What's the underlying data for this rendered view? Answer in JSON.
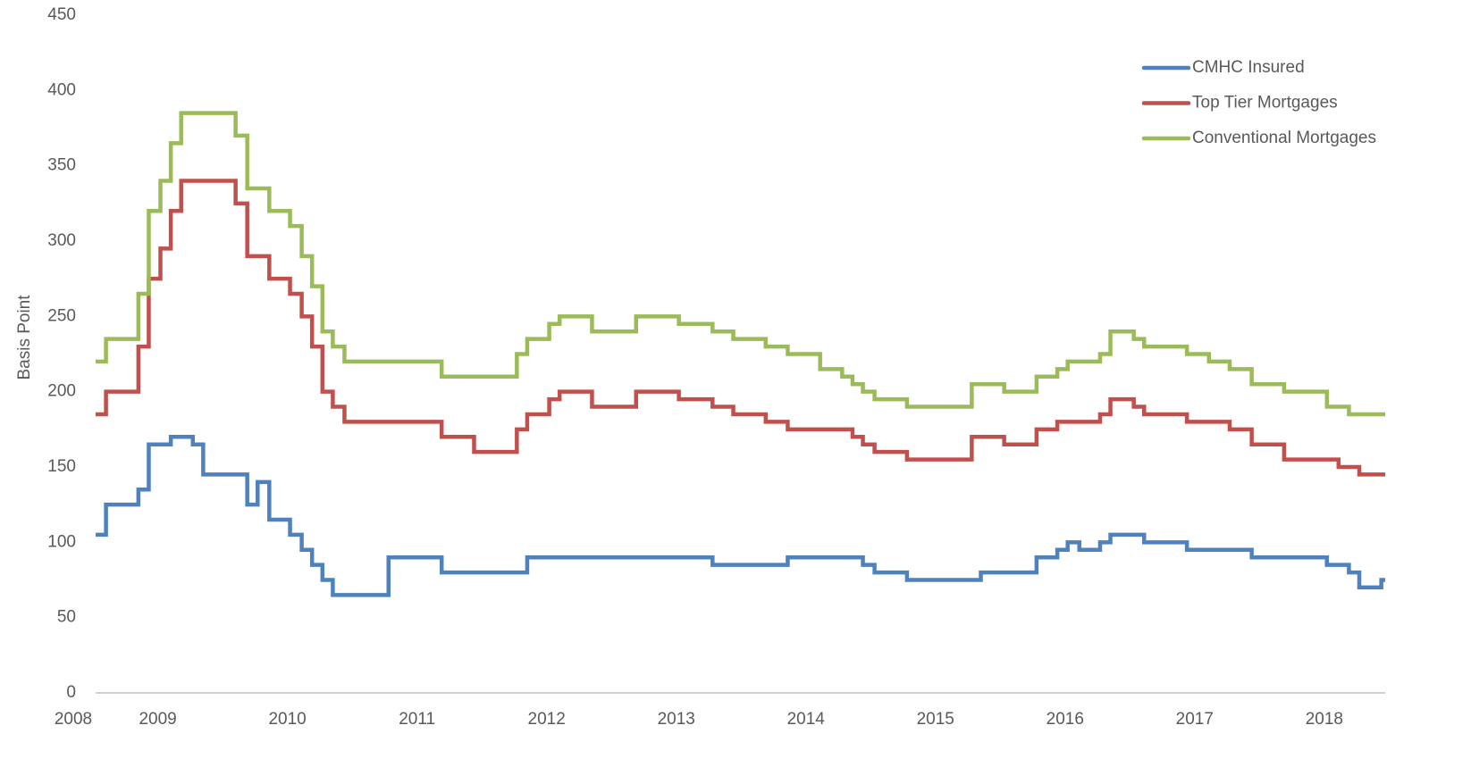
{
  "chart_data": {
    "type": "step-line",
    "y_label": "Basis Point",
    "xlim": [
      2008.52,
      2018.47
    ],
    "xticks": [
      2008,
      2009,
      2010,
      2011,
      2012,
      2013,
      2014,
      2015,
      2016,
      2017,
      2018
    ],
    "ylim": [
      0,
      450
    ],
    "yticks": [
      0,
      50,
      100,
      150,
      200,
      250,
      300,
      350,
      400,
      450
    ],
    "grid": false,
    "legend": "upper right",
    "series": [
      {
        "name": "CMHC Insured",
        "color": "#4f81bd",
        "x": [
          2008.52,
          2008.6,
          2008.85,
          2008.93,
          2009.1,
          2009.27,
          2009.35,
          2009.69,
          2009.77,
          2009.86,
          2010.02,
          2010.11,
          2010.19,
          2010.27,
          2010.35,
          2010.78,
          2011.19,
          2011.85,
          2013.28,
          2013.86,
          2014.44,
          2014.53,
          2014.78,
          2015.35,
          2015.78,
          2015.94,
          2016.02,
          2016.11,
          2016.27,
          2016.35,
          2016.61,
          2016.94,
          2017.44,
          2018.02,
          2018.19,
          2018.27,
          2018.44
        ],
        "values": [
          105,
          125,
          135,
          165,
          170,
          165,
          145,
          125,
          140,
          115,
          105,
          95,
          85,
          75,
          65,
          90,
          80,
          90,
          85,
          90,
          85,
          80,
          75,
          80,
          90,
          95,
          100,
          95,
          100,
          105,
          100,
          95,
          90,
          85,
          80,
          70,
          75
        ]
      },
      {
        "name": "Top Tier Mortgages",
        "color": "#c0504d",
        "x": [
          2008.52,
          2008.6,
          2008.85,
          2008.93,
          2009.02,
          2009.1,
          2009.18,
          2009.6,
          2009.69,
          2009.86,
          2010.02,
          2010.11,
          2010.19,
          2010.27,
          2010.35,
          2010.44,
          2011.19,
          2011.44,
          2011.77,
          2011.85,
          2012.02,
          2012.1,
          2012.35,
          2012.69,
          2013.02,
          2013.28,
          2013.44,
          2013.69,
          2013.86,
          2014.36,
          2014.44,
          2014.53,
          2014.78,
          2015.28,
          2015.53,
          2015.78,
          2015.94,
          2016.27,
          2016.35,
          2016.53,
          2016.61,
          2016.94,
          2017.27,
          2017.44,
          2017.69,
          2018.11,
          2018.27
        ],
        "values": [
          185,
          200,
          230,
          275,
          295,
          320,
          340,
          325,
          290,
          275,
          265,
          250,
          230,
          200,
          190,
          180,
          170,
          160,
          175,
          185,
          195,
          200,
          190,
          200,
          195,
          190,
          185,
          180,
          175,
          170,
          165,
          160,
          155,
          170,
          165,
          175,
          180,
          185,
          195,
          190,
          185,
          180,
          175,
          165,
          155,
          150,
          145
        ]
      },
      {
        "name": "Conventional Mortgages",
        "color": "#9bbb59",
        "x": [
          2008.52,
          2008.6,
          2008.85,
          2008.93,
          2009.02,
          2009.1,
          2009.18,
          2009.6,
          2009.69,
          2009.86,
          2010.02,
          2010.11,
          2010.19,
          2010.27,
          2010.35,
          2010.44,
          2011.19,
          2011.77,
          2011.85,
          2012.02,
          2012.1,
          2012.35,
          2012.69,
          2013.02,
          2013.28,
          2013.44,
          2013.69,
          2013.86,
          2014.11,
          2014.28,
          2014.36,
          2014.44,
          2014.53,
          2014.78,
          2015.28,
          2015.53,
          2015.78,
          2015.94,
          2016.02,
          2016.27,
          2016.35,
          2016.53,
          2016.61,
          2016.94,
          2017.11,
          2017.27,
          2017.44,
          2017.69,
          2018.02,
          2018.19
        ],
        "values": [
          220,
          235,
          265,
          320,
          340,
          365,
          385,
          370,
          335,
          320,
          310,
          290,
          270,
          240,
          230,
          220,
          210,
          225,
          235,
          245,
          250,
          240,
          250,
          245,
          240,
          235,
          230,
          225,
          215,
          210,
          205,
          200,
          195,
          190,
          205,
          200,
          210,
          215,
          220,
          225,
          240,
          235,
          230,
          225,
          220,
          215,
          205,
          200,
          190,
          185
        ]
      }
    ]
  }
}
